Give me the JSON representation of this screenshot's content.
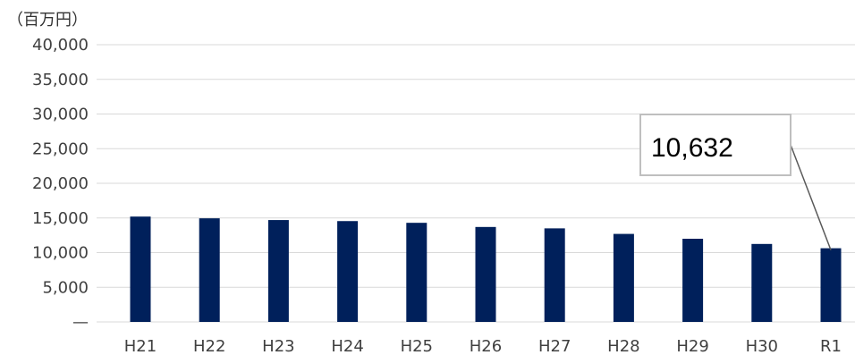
{
  "chart_data": {
    "type": "bar",
    "title": "",
    "unit_label": "（百万円）",
    "xlabel": "",
    "ylabel": "",
    "categories": [
      "H21",
      "H22",
      "H23",
      "H24",
      "H25",
      "H26",
      "H27",
      "H28",
      "H29",
      "H30",
      "R1"
    ],
    "series": [
      {
        "values": [
          15200,
          14950,
          14700,
          14550,
          14300,
          13700,
          13500,
          12700,
          12000,
          11250,
          10632
        ]
      }
    ],
    "ylim": [
      0,
      40000
    ],
    "yticks": [
      {
        "value": 0,
        "label": "—"
      },
      {
        "value": 5000,
        "label": "5,000"
      },
      {
        "value": 10000,
        "label": "10,000"
      },
      {
        "value": 15000,
        "label": "15,000"
      },
      {
        "value": 20000,
        "label": "20,000"
      },
      {
        "value": 25000,
        "label": "25,000"
      },
      {
        "value": 30000,
        "label": "30,000"
      },
      {
        "value": 35000,
        "label": "35,000"
      },
      {
        "value": 40000,
        "label": "40,000"
      }
    ],
    "grid": true,
    "bar_color": "#00205b",
    "grid_color": "#d9d9d9",
    "callout": {
      "category": "R1",
      "text": "10,632"
    }
  }
}
